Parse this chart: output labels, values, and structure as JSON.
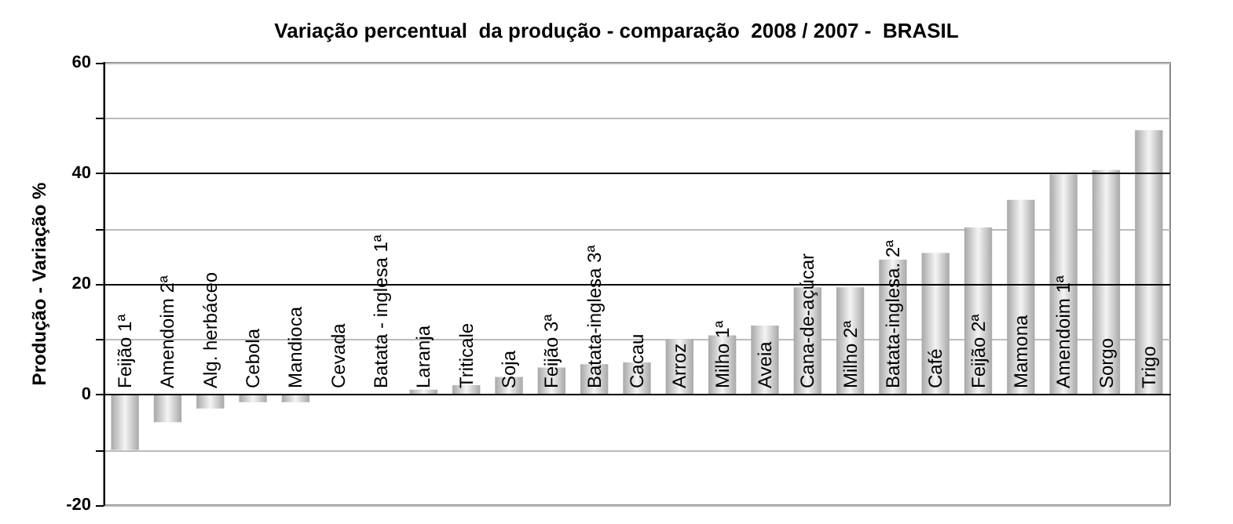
{
  "chart_data": {
    "type": "bar",
    "title": "Variação percentual  da produção - comparação  2008 / 2007 -  BRASIL",
    "ylabel": "Produção - Variação %",
    "categories": [
      "Feijão 1ª",
      "Amendoim 2ª",
      "Alg. herbáceo",
      "Cebola",
      "Mandioca",
      "Cevada",
      "Batata - inglesa 1ª",
      "Laranja",
      "Triticale",
      "Soja",
      "Feijão 3ª",
      "Batata-inglesa 3ª",
      "Cacau",
      "Arroz",
      "Milho 1ª",
      "Aveia",
      "Cana-de-açúcar",
      "Milho 2ª",
      "Batata-inglesa. 2ª",
      "Café",
      "Feijão 2ª",
      "Mamona",
      "Amendoim 1ª",
      "Sorgo",
      "Trigo"
    ],
    "values": [
      -10,
      -5,
      -2.5,
      -1.4,
      -1.4,
      0,
      0,
      0.9,
      1.7,
      3.2,
      4.9,
      5.5,
      5.8,
      10,
      10.7,
      12.5,
      19.4,
      19.4,
      24.4,
      25.6,
      30.2,
      35.2,
      39.8,
      40.6,
      47.8
    ],
    "color": "#a8a8a8",
    "ylim": [
      -20,
      60
    ],
    "yticks": [
      -20,
      {
        "value": -10,
        "label": null
      },
      0,
      {
        "value": 10,
        "label": null
      },
      20,
      {
        "value": 30,
        "label": null
      },
      40,
      {
        "value": 50,
        "label": null
      },
      60
    ],
    "grid": true
  }
}
